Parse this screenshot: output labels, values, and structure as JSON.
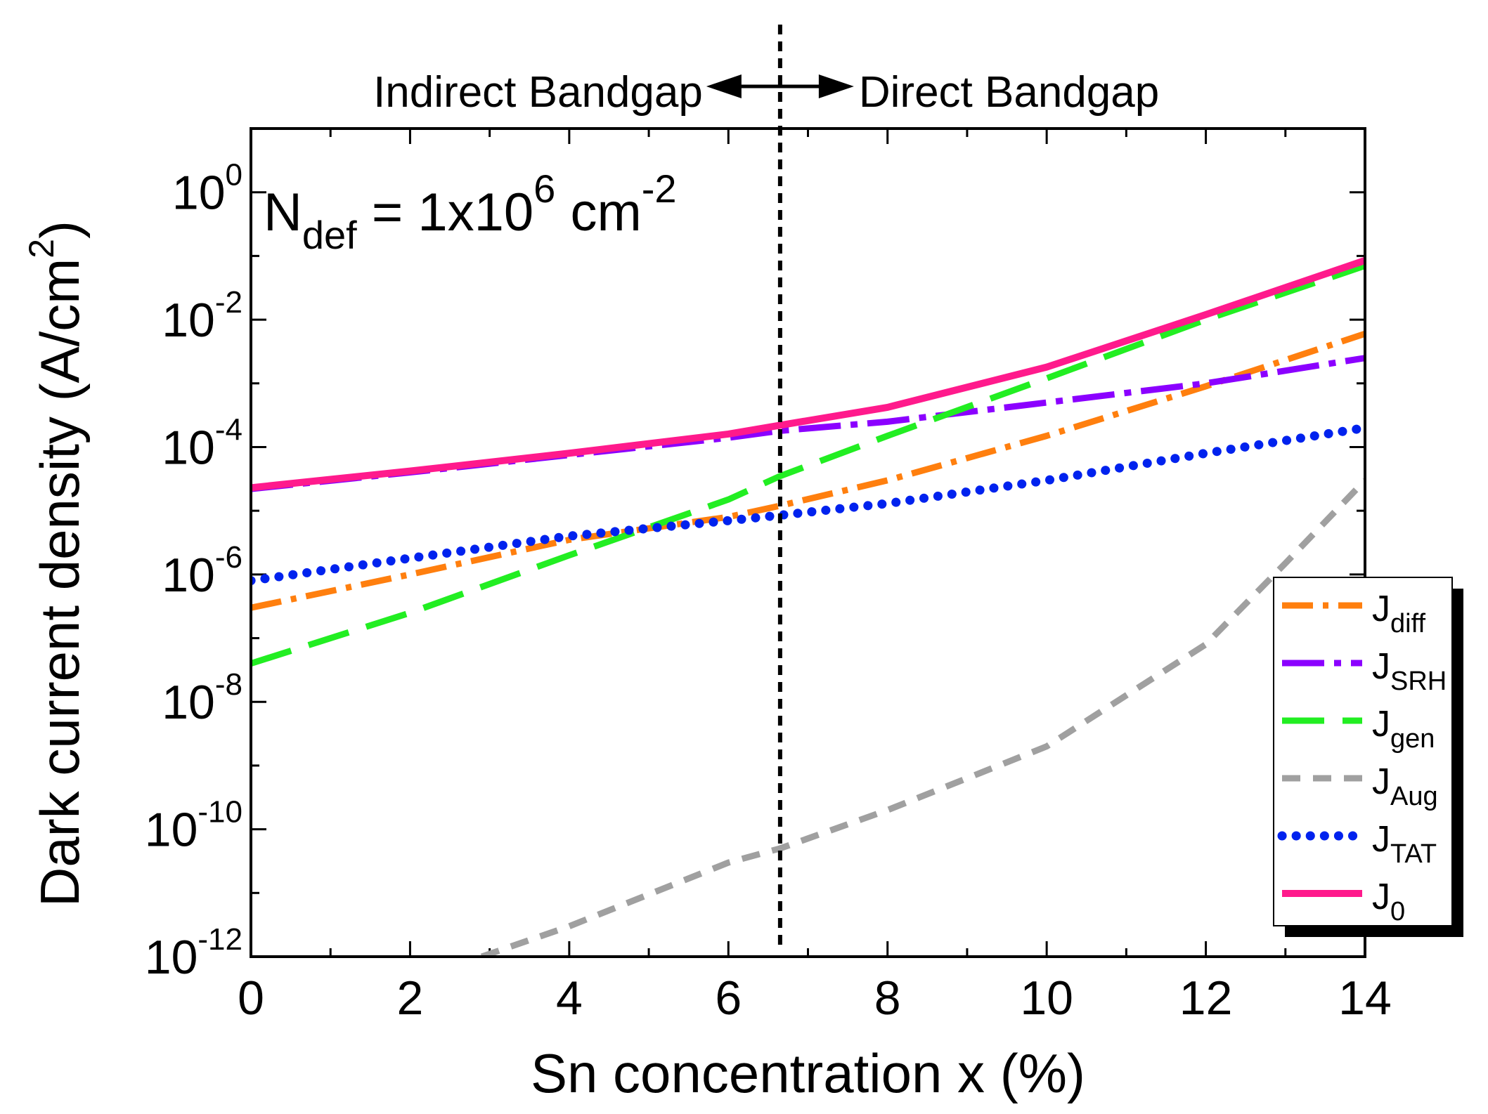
{
  "chart_data": {
    "type": "line",
    "xlabel": "Sn concentration x (%)",
    "ylabel": "Dark current density (A/cm²)",
    "ylabel_parts": {
      "base": "Dark current density (A/cm",
      "sup": "2",
      "end": ")"
    },
    "xlim": [
      0,
      14
    ],
    "ylim": [
      1e-12,
      10
    ],
    "yscale": "log",
    "x_ticks": [
      "0",
      "2",
      "4",
      "6",
      "8",
      "10",
      "12",
      "14"
    ],
    "y_ticks": [
      {
        "base": "10",
        "exp": "0",
        "value": 1
      },
      {
        "base": "10",
        "exp": "-2",
        "value": 0.01
      },
      {
        "base": "10",
        "exp": "-4",
        "value": 0.0001
      },
      {
        "base": "10",
        "exp": "-6",
        "value": 1e-06
      },
      {
        "base": "10",
        "exp": "-8",
        "value": 1e-08
      },
      {
        "base": "10",
        "exp": "-10",
        "value": 1e-10
      },
      {
        "base": "10",
        "exp": "-12",
        "value": 1e-12
      }
    ],
    "grid": false,
    "legend_position": "right-lower",
    "annotation": {
      "n": "N",
      "sub": "def",
      "mid": " = 1x10",
      "exp": "6",
      "unit": " cm",
      "unit_exp": "-2"
    },
    "region_divider_x": 6.65,
    "region_left_label": "Indirect Bandgap",
    "region_right_label": "Direct Bandgap",
    "series": [
      {
        "name": "J_diff",
        "label_base": "J",
        "label_sub": "diff",
        "color": "#ff7f0e",
        "style": "dashdot",
        "x": [
          0,
          2,
          4,
          6,
          6.65,
          8,
          10,
          12,
          14
        ],
        "y": [
          3e-07,
          1e-06,
          3.5e-06,
          8e-06,
          1.2e-05,
          3e-05,
          0.00015,
          0.0009,
          0.006
        ]
      },
      {
        "name": "J_SRH",
        "label_base": "J",
        "label_sub": "SRH",
        "color": "#8b00ff",
        "style": "longdashdot",
        "x": [
          0,
          2,
          4,
          6,
          6.65,
          8,
          10,
          12,
          14
        ],
        "y": [
          2.2e-05,
          4e-05,
          7.5e-05,
          0.00014,
          0.00018,
          0.00025,
          0.0005,
          0.001,
          0.0025
        ]
      },
      {
        "name": "J_gen",
        "label_base": "J",
        "label_sub": "gen",
        "color": "#22ee22",
        "style": "longdash",
        "x": [
          0,
          2,
          4,
          6,
          6.65,
          8,
          10,
          12,
          14
        ],
        "y": [
          4e-08,
          2.5e-07,
          2e-06,
          1.5e-05,
          3.5e-05,
          0.00015,
          0.0012,
          0.01,
          0.07
        ]
      },
      {
        "name": "J_Aug",
        "label_base": "J",
        "label_sub": "Aug",
        "color": "#a0a0a0",
        "style": "shortdash",
        "x": [
          2.9,
          4,
          6,
          6.65,
          8,
          10,
          12,
          13,
          14
        ],
        "y": [
          1e-12,
          3e-12,
          3e-11,
          5e-11,
          2e-10,
          2e-09,
          8e-08,
          1.5e-06,
          3e-05
        ]
      },
      {
        "name": "J_TAT",
        "label_base": "J",
        "label_sub": "TAT",
        "color": "#0022ee",
        "style": "dotted",
        "x": [
          0,
          2,
          4,
          6,
          6.65,
          8,
          10,
          12,
          14
        ],
        "y": [
          8e-07,
          1.8e-06,
          4e-06,
          7e-06,
          8.5e-06,
          1.3e-05,
          3e-05,
          8e-05,
          0.0002
        ]
      },
      {
        "name": "J_0",
        "label_base": "J",
        "label_sub": "0",
        "color": "#ff1a8c",
        "style": "solid",
        "x": [
          0,
          2,
          4,
          6,
          6.65,
          8,
          10,
          12,
          14
        ],
        "y": [
          2.3e-05,
          4.2e-05,
          8e-05,
          0.00016,
          0.00022,
          0.00042,
          0.0018,
          0.012,
          0.085
        ]
      }
    ]
  }
}
